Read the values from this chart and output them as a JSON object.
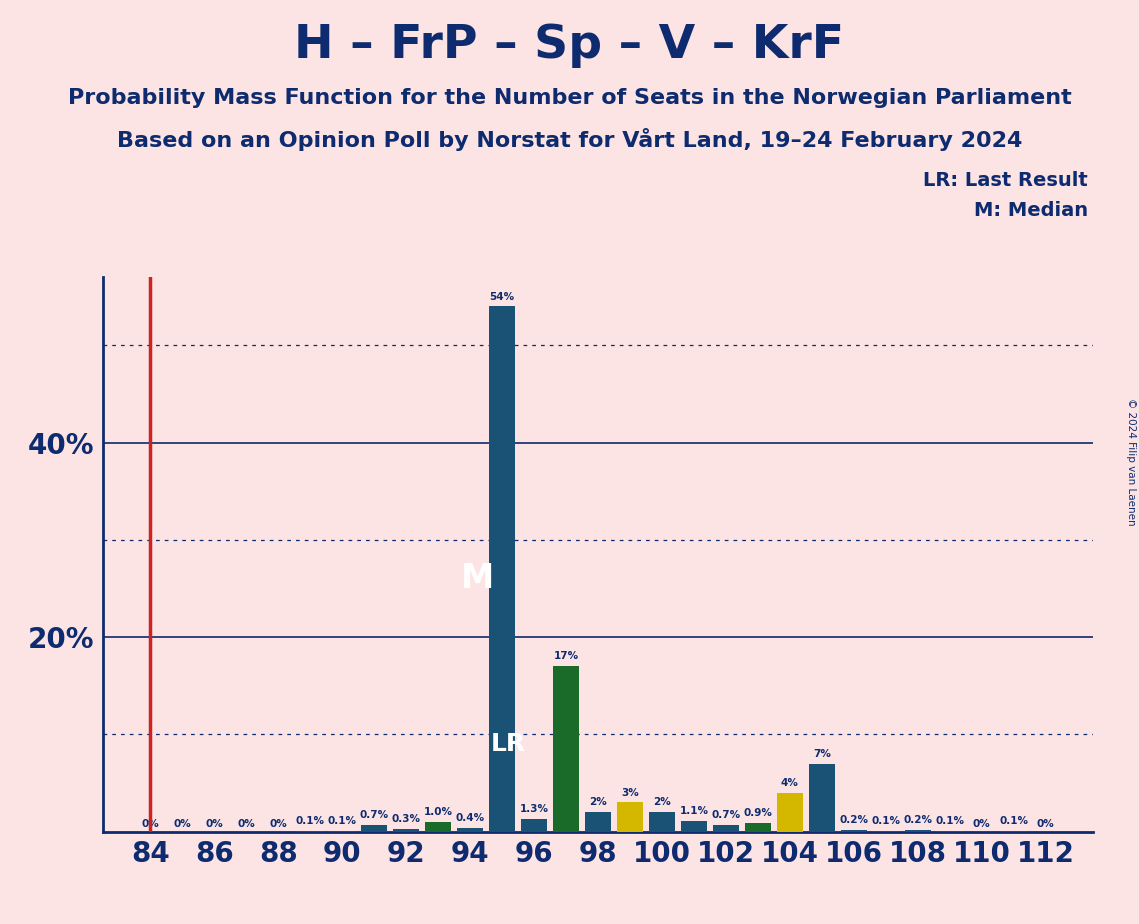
{
  "title": "H – FrP – Sp – V – KrF",
  "subtitle1": "Probability Mass Function for the Number of Seats in the Norwegian Parliament",
  "subtitle2": "Based on an Opinion Poll by Norstat for Vårt Land, 19–24 February 2024",
  "copyright": "© 2024 Filip van Laenen",
  "lr_label": "LR: Last Result",
  "m_label": "M: Median",
  "background_color": "#fce4e4",
  "bar_color_navy": "#1a5276",
  "bar_color_green": "#1a6b2a",
  "bar_color_yellow": "#d4b800",
  "text_color": "#0d2b6e",
  "red_line_color": "#cc2222",
  "grid_color": "#0d2b6e",
  "median_seat": 95,
  "lr_seat": 96,
  "red_line_seat": 84,
  "bar_data": [
    {
      "seat": 84,
      "value": 0.0,
      "color": "navy",
      "label": "0%"
    },
    {
      "seat": 85,
      "value": 0.0,
      "color": "navy",
      "label": "0%"
    },
    {
      "seat": 86,
      "value": 0.0,
      "color": "navy",
      "label": "0%"
    },
    {
      "seat": 87,
      "value": 0.0,
      "color": "navy",
      "label": "0%"
    },
    {
      "seat": 88,
      "value": 0.0,
      "color": "navy",
      "label": "0%"
    },
    {
      "seat": 89,
      "value": 0.1,
      "color": "navy",
      "label": "0.1%"
    },
    {
      "seat": 90,
      "value": 0.1,
      "color": "navy",
      "label": "0.1%"
    },
    {
      "seat": 91,
      "value": 0.7,
      "color": "navy",
      "label": "0.7%"
    },
    {
      "seat": 92,
      "value": 0.3,
      "color": "navy",
      "label": "0.3%"
    },
    {
      "seat": 93,
      "value": 1.0,
      "color": "green",
      "label": "1.0%"
    },
    {
      "seat": 94,
      "value": 0.4,
      "color": "navy",
      "label": "0.4%"
    },
    {
      "seat": 95,
      "value": 54.0,
      "color": "navy",
      "label": "54%"
    },
    {
      "seat": 96,
      "value": 1.3,
      "color": "navy",
      "label": "1.3%"
    },
    {
      "seat": 97,
      "value": 17.0,
      "color": "green",
      "label": "17%"
    },
    {
      "seat": 98,
      "value": 2.0,
      "color": "navy",
      "label": "2%"
    },
    {
      "seat": 99,
      "value": 3.0,
      "color": "yellow",
      "label": "3%"
    },
    {
      "seat": 100,
      "value": 2.0,
      "color": "navy",
      "label": "2%"
    },
    {
      "seat": 101,
      "value": 1.1,
      "color": "navy",
      "label": "1.1%"
    },
    {
      "seat": 102,
      "value": 0.7,
      "color": "navy",
      "label": "0.7%"
    },
    {
      "seat": 103,
      "value": 0.9,
      "color": "green",
      "label": "0.9%"
    },
    {
      "seat": 104,
      "value": 4.0,
      "color": "yellow",
      "label": "4%"
    },
    {
      "seat": 105,
      "value": 7.0,
      "color": "navy",
      "label": "7%"
    },
    {
      "seat": 106,
      "value": 0.2,
      "color": "navy",
      "label": "0.2%"
    },
    {
      "seat": 107,
      "value": 0.1,
      "color": "navy",
      "label": "0.1%"
    },
    {
      "seat": 108,
      "value": 0.2,
      "color": "navy",
      "label": "0.2%"
    },
    {
      "seat": 109,
      "value": 0.1,
      "color": "navy",
      "label": "0.1%"
    },
    {
      "seat": 110,
      "value": 0.0,
      "color": "navy",
      "label": "0%"
    },
    {
      "seat": 111,
      "value": 0.1,
      "color": "navy",
      "label": "0.1%"
    },
    {
      "seat": 112,
      "value": 0.0,
      "color": "navy",
      "label": "0%"
    }
  ],
  "ylim": [
    0,
    57
  ],
  "solid_gridlines": [
    20,
    40
  ],
  "dotted_gridlines": [
    10,
    30,
    50
  ],
  "xtick_positions": [
    84,
    86,
    88,
    90,
    92,
    94,
    96,
    98,
    100,
    102,
    104,
    106,
    108,
    110,
    112
  ],
  "xtick_labels": [
    "84",
    "86",
    "88",
    "90",
    "92",
    "94",
    "96",
    "98",
    "100",
    "102",
    "104",
    "106",
    "108",
    "110",
    "112"
  ],
  "ytick_positions": [
    20,
    40
  ],
  "ytick_labels": [
    "20%",
    "40%"
  ]
}
